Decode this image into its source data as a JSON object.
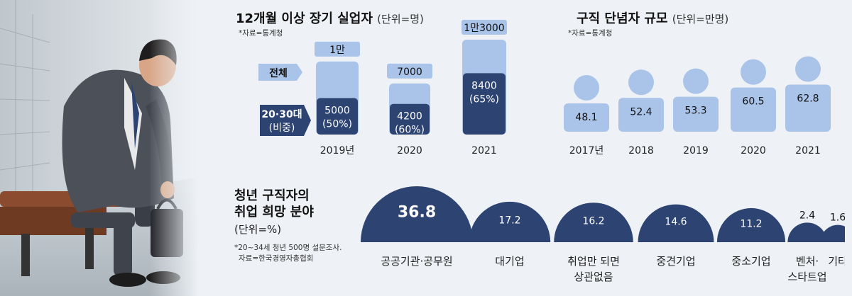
{
  "colors": {
    "light_blue": "#a9c4e8",
    "navy": "#2d4372",
    "text": "#1b1d22"
  },
  "long_term": {
    "title": "12개월 이상 장기 실업자",
    "unit": "(단위=명)",
    "source": "*자료=통계청",
    "legend_total": "전체",
    "legend_youth_line1": "20·30대",
    "legend_youth_line2": "(비중)"
  },
  "give_up": {
    "title": "구직 단념자 규모",
    "unit": "(단위=만명)",
    "source": "*자료=통계청"
  },
  "hope": {
    "title_line1": "청년 구직자의",
    "title_line2": "취업 희망 분야",
    "unit": "(단위=%)",
    "note_line1": "*20~34세 청년 500명 설문조사.",
    "note_line2": "자료=한국경영자총협회"
  },
  "chart_data": [
    {
      "type": "bar",
      "title": "12개월 이상 장기 실업자",
      "unit": "명",
      "categories": [
        "2019년",
        "2020",
        "2021"
      ],
      "series": [
        {
          "name": "전체",
          "values": [
            10000,
            7000,
            13000
          ],
          "labels": [
            "1만",
            "7000",
            "1만3000"
          ]
        },
        {
          "name": "20·30대",
          "values": [
            5000,
            4200,
            8400
          ],
          "labels": [
            "5000",
            "4200",
            "8400"
          ],
          "share_labels": [
            "(50%)",
            "(60%)",
            "(65%)"
          ]
        }
      ]
    },
    {
      "type": "bar",
      "title": "구직 단념자 규모",
      "unit": "만명",
      "categories": [
        "2017년",
        "2018",
        "2019",
        "2020",
        "2021"
      ],
      "values": [
        48.1,
        52.4,
        53.3,
        60.5,
        62.8
      ],
      "labels": [
        "48.1",
        "52.4",
        "53.3",
        "60.5",
        "62.8"
      ]
    },
    {
      "type": "bar",
      "title": "청년 구직자의 취업 희망 분야",
      "unit": "%",
      "categories": [
        [
          "공공기관·공무원"
        ],
        [
          "대기업"
        ],
        [
          "취업만 되면",
          "상관없음"
        ],
        [
          "중견기업"
        ],
        [
          "중소기업"
        ],
        [
          "벤처·",
          "스타트업"
        ],
        [
          "기타"
        ]
      ],
      "values": [
        36.8,
        17.2,
        16.2,
        14.6,
        11.2,
        2.4,
        1.6
      ],
      "labels": [
        "36.8",
        "17.2",
        "16.2",
        "14.6",
        "11.2",
        "2.4",
        "1.6"
      ]
    }
  ]
}
